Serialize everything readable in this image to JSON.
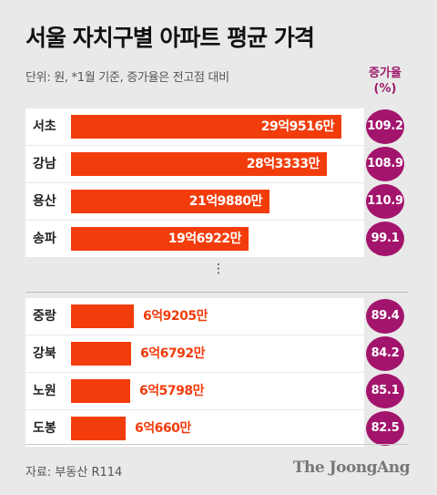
{
  "header": {
    "title": "서울 자치구별 아파트 평균 가격",
    "subtitle": "단위: 원, *1월 기준, 증가율은 전고점 대비",
    "rate_label_line1": "증가율",
    "rate_label_line2": "(%)"
  },
  "colors": {
    "bar": "#f23c0c",
    "bubble": "#a3146d",
    "background": "#e9e9e9"
  },
  "chart_data": {
    "type": "bar",
    "orientation": "horizontal",
    "title": "서울 자치구별 아파트 평균 가격",
    "subtitle": "단위: 원, *1월 기준, 증가율은 전고점 대비",
    "categories": [
      "서초",
      "강남",
      "용산",
      "송파",
      "중랑",
      "강북",
      "노원",
      "도봉"
    ],
    "value_labels": [
      "29억9516만",
      "28억3333만",
      "21억9880만",
      "19억6922만",
      "6억9205만",
      "6억6792만",
      "6억5798만",
      "6억660만"
    ],
    "values": [
      2995160000,
      2833330000,
      2198800000,
      1969220000,
      692050000,
      667920000,
      657980000,
      606600000
    ],
    "rates": [
      "109.2",
      "108.9",
      "110.9",
      "99.1",
      "89.4",
      "84.2",
      "85.1",
      "82.5"
    ],
    "rate_label": "증가율 (%)",
    "gap_after_index": 3
  },
  "ellipsis": "⋮",
  "footer": {
    "source": "자료: 부동산 R114",
    "logo": "The JoongAng"
  }
}
